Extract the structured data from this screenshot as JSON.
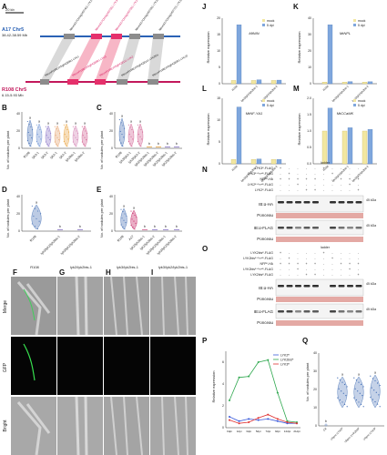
{
  "panels": {
    "A": {
      "label": "A",
      "scale_bar": "20 kb",
      "top_chr": "A17 Chr5",
      "top_range": "38.42-38.59 Mb",
      "bottom_chr": "R108 Chr5",
      "bottom_range": "6.15-5.93 Mb",
      "top_genes": [
        "MtrunA17Chr5g0437401 LYK1",
        "MtrunA17Chr5g0437551 LYK3",
        "MtrunA17Chr5g0437591 LYK2",
        "MtrunA17Chr5g0437691 LYK2bis",
        "MtrunA17Chr5g0437721 LYK10"
      ],
      "bottom_genes": [
        "MtrunR108Chr5g0428061 LYK1",
        "MtrunR108Chr5g0428091 LYK3",
        "MtrunR108Chr5g0428111 LYK2",
        "MtrunR108Chr5g0428141 LYK2bis",
        "MtrunR108Chr5g0428201 LYK10"
      ]
    },
    "B": {
      "label": "B",
      "ylabel": "No. of nodules per plant",
      "ymax": "40",
      "ymid": "20",
      "ymin": "0",
      "groups": [
        "R108",
        "lyk3-1",
        "lyk3-2",
        "lyk2-1",
        "lyk2-2",
        "lyk2bis-1",
        "lyk2bis-2"
      ],
      "letters": [
        "a",
        "a",
        "a",
        "a",
        "a",
        "a",
        "a"
      ]
    },
    "C": {
      "label": "C",
      "ylabel": "No. of nodules per plant",
      "ymax": "40",
      "ymid": "20",
      "ymin": "0",
      "groups": [
        "R108",
        "lyk3/lyk2-1",
        "lyk3/lyk2-2",
        "lyk3/lyk2bis-1",
        "lyk3/lyk2bis-2",
        "lyk2/lyk2bis-1",
        "lyk2/lyk2bis-2"
      ],
      "letters": [
        "a",
        "a",
        "a",
        "b",
        "b",
        "b",
        "b"
      ]
    },
    "D": {
      "label": "D",
      "ylabel": "No. of nodules per plant",
      "ymax": "40",
      "ymid": "20",
      "ymin": "0",
      "groups": [
        "R108",
        "lyk3/lyk2/lyk2bis-1",
        "lyk3/lyk2/lyk2bis-2"
      ],
      "letters": [
        "a",
        "b",
        "b"
      ]
    },
    "E": {
      "label": "E",
      "ylabel": "No. of nodules per plant",
      "ymax": "40",
      "ymid": "20",
      "ymin": "0",
      "groups": [
        "R108",
        "A17",
        "lyk2/lyk2bis-1",
        "lyk2/lyk2bis-2",
        "lyk3/lyk2/lyk2bis-1",
        "lyk3/lyk2/lyk2bis-2"
      ],
      "letters": [
        "a",
        "a",
        "b",
        "b",
        "b",
        "b"
      ]
    },
    "F": {
      "label": "F",
      "title": "R108"
    },
    "G": {
      "label": "G",
      "title": "lyk2/lyk2bis-1"
    },
    "H": {
      "label": "H",
      "title": "lyk3/lyk2bis-1"
    },
    "I": {
      "label": "I",
      "title": "lyk3/lyk2/lyk2bis-1"
    },
    "micro_rows": [
      "Merge",
      "GFP",
      "Bright"
    ],
    "J": {
      "label": "J",
      "gene": "MtNIN",
      "ylabel": "Relative expression",
      "legend": [
        "mock",
        "5 dpi"
      ],
      "groups": [
        "R108",
        "lyk3/lyk2/lyk2bis-1",
        "lyk3/lyk2/lyk2bis-2"
      ],
      "yticks": [
        "0",
        "5",
        "10",
        "15",
        "20"
      ]
    },
    "K": {
      "label": "K",
      "gene": "MtNPL",
      "ylabel": "Relative expression",
      "legend": [
        "mock",
        "5 dpi"
      ],
      "groups": [
        "R108",
        "lyk3/lyk2/lyk2bis-1",
        "lyk3/lyk2/lyk2bis-2"
      ],
      "yticks": [
        "0",
        "10",
        "20",
        "30",
        "40"
      ]
    },
    "L": {
      "label": "L",
      "gene": "MtNF-YA1",
      "ylabel": "Relative expression",
      "legend": [
        "mock",
        "5 dpi"
      ],
      "groups": [
        "R108",
        "lyk3/lyk2/lyk2bis-1",
        "lyk3/lyk2/lyk2bis-2"
      ],
      "yticks": [
        "0",
        "5",
        "10",
        "15"
      ]
    },
    "M": {
      "label": "M",
      "gene": "MtCCaMK",
      "ylabel": "Relative expression",
      "legend": [
        "mock",
        "5 dpi"
      ],
      "groups": [
        "R108",
        "lyk3/lyk2/lyk2bis-1",
        "lyk3/lyk2/lyk2bis-2"
      ],
      "yticks": [
        "0.0",
        "0.5",
        "1.0",
        "1.5",
        "2.0"
      ]
    },
    "N": {
      "label": "N",
      "rows": [
        "LYK3ᴷ-FLAG",
        "LYK3ᴷ·ᴳ³³⁴ᴱ-FLAG",
        "NFPᴷ-HA",
        "LYK2ᴷ·ᴳ³³⁴ᴱ-FLAG",
        "LYK2ᴷ-FLAG"
      ],
      "ladder": "ladder",
      "blots": [
        "IB:α-HA",
        "Ponceau",
        "IB:α-FLAG",
        "Ponceau"
      ],
      "kda": [
        "45 kDa",
        "45 kDa"
      ]
    },
    "O": {
      "label": "O",
      "rows": [
        "LYK2bisᴷ-FLAG",
        "LYK2bisᴷ·ᴳ³³⁴ᴱ-FLAG",
        "NFPᴷ-HA",
        "LYK2bisᴷ·ᴳ³³⁴ᴱ-FLAG",
        "LYK2bisᴷ-FLAG"
      ],
      "ladder": "ladder",
      "blots": [
        "IB:α-HA",
        "Ponceau",
        "IB:α-FLAG",
        "Ponceau"
      ],
      "kda": [
        "45 kDa",
        "45 kDa"
      ]
    },
    "P": {
      "label": "P",
      "ylabel": "Relative expression",
      "legend": [
        "LYK2ᴿ",
        "LYK2bisᴿ",
        "LYK3ᴿ"
      ]
    },
    "Q": {
      "label": "Q",
      "ylabel": "No. of nodules per plant",
      "groups": [
        "CK",
        "Ubpro::LYK2ᴿ",
        "Ubpro::LYK2bisᴿ",
        "Ubpro::LYK3ᴿ"
      ],
      "letters": [
        "b",
        "a",
        "a",
        "a"
      ],
      "yticks": [
        "0",
        "10",
        "20",
        "30",
        "40"
      ]
    }
  },
  "chart_data": [
    {
      "type": "line",
      "panel": "P",
      "categories": [
        "0dpi",
        "1dpi",
        "3dpi",
        "5dpi",
        "7dpi",
        "9dpi",
        "14dpi",
        "21dpi"
      ],
      "ylabel": "Relative expression",
      "ylim": [
        0,
        7
      ],
      "series": [
        {
          "name": "LYK2ᴿ",
          "values": [
            1.0,
            0.6,
            0.8,
            0.7,
            0.8,
            0.6,
            0.4,
            0.4
          ]
        },
        {
          "name": "LYK2bisᴿ",
          "values": [
            2.5,
            4.6,
            4.7,
            6.0,
            6.2,
            3.2,
            0.6,
            0.5
          ]
        },
        {
          "name": "LYK3ᴿ",
          "values": [
            0.7,
            0.4,
            0.5,
            0.9,
            1.2,
            0.8,
            0.5,
            0.4
          ]
        }
      ]
    },
    {
      "type": "bar",
      "panel": "J",
      "categories": [
        "R108",
        "lyk3/lyk2/lyk2bis-1",
        "lyk3/lyk2/lyk2bis-2"
      ],
      "series": [
        {
          "name": "mock",
          "values": [
            1,
            1,
            1
          ]
        },
        {
          "name": "5 dpi",
          "values": [
            18,
            1.2,
            1.1
          ]
        }
      ],
      "ylim": [
        0,
        20
      ]
    },
    {
      "type": "bar",
      "panel": "K",
      "categories": [
        "R108",
        "lyk3/lyk2/lyk2bis-1",
        "lyk3/lyk2/lyk2bis-2"
      ],
      "series": [
        {
          "name": "mock",
          "values": [
            1,
            1,
            1
          ]
        },
        {
          "name": "5 dpi",
          "values": [
            36,
            1.3,
            1.2
          ]
        }
      ],
      "ylim": [
        0,
        40
      ]
    },
    {
      "type": "bar",
      "panel": "L",
      "categories": [
        "R108",
        "lyk3/lyk2/lyk2bis-1",
        "lyk3/lyk2/lyk2bis-2"
      ],
      "series": [
        {
          "name": "mock",
          "values": [
            1,
            1,
            1
          ]
        },
        {
          "name": "5 dpi",
          "values": [
            13,
            1.1,
            1.0
          ]
        }
      ],
      "ylim": [
        0,
        15
      ]
    },
    {
      "type": "bar",
      "panel": "M",
      "categories": [
        "R108",
        "lyk3/lyk2/lyk2bis-1",
        "lyk3/lyk2/lyk2bis-2"
      ],
      "series": [
        {
          "name": "mock",
          "values": [
            1.0,
            1.0,
            1.0
          ]
        },
        {
          "name": "5 dpi",
          "values": [
            1.7,
            1.1,
            1.05
          ]
        }
      ],
      "ylim": [
        0,
        2
      ]
    }
  ]
}
